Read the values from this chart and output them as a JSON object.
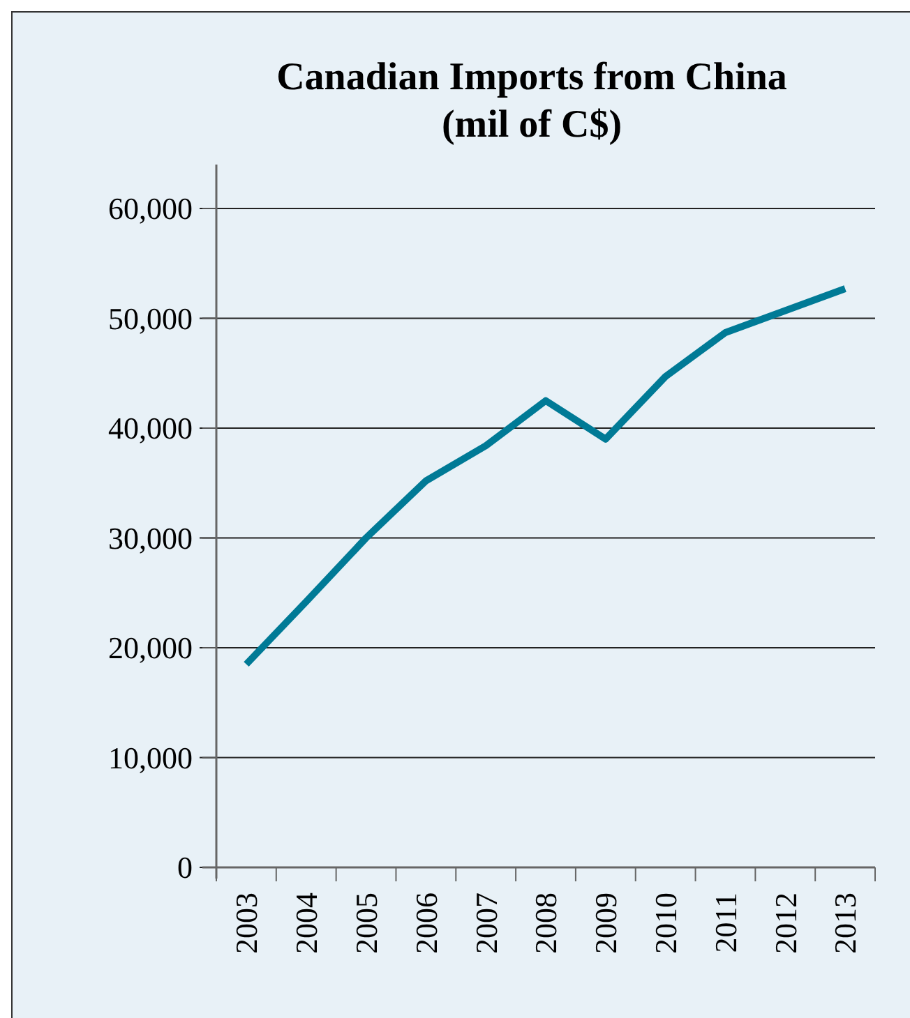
{
  "chart_data": {
    "type": "line",
    "title": "Canadian Imports from China",
    "subtitle": "(mil of C$)",
    "categories": [
      "2003",
      "2004",
      "2005",
      "2006",
      "2007",
      "2008",
      "2009",
      "2010",
      "2011",
      "2012",
      "2013"
    ],
    "series": [
      {
        "color": "#007a96",
        "values": [
          18500,
          24200,
          30000,
          35200,
          38400,
          42500,
          39000,
          44700,
          48700,
          50700,
          52700
        ]
      }
    ],
    "ylim": [
      0,
      64000
    ],
    "yticks": [
      {
        "value": 0,
        "label": "0"
      },
      {
        "value": 10000,
        "label": "10,000"
      },
      {
        "value": 20000,
        "label": "20,000"
      },
      {
        "value": 30000,
        "label": "30,000"
      },
      {
        "value": 40000,
        "label": "40,000"
      },
      {
        "value": 50000,
        "label": "50,000"
      },
      {
        "value": 60000,
        "label": "60,000"
      }
    ],
    "grid": "y",
    "marker": "none",
    "line_style": "solid"
  }
}
